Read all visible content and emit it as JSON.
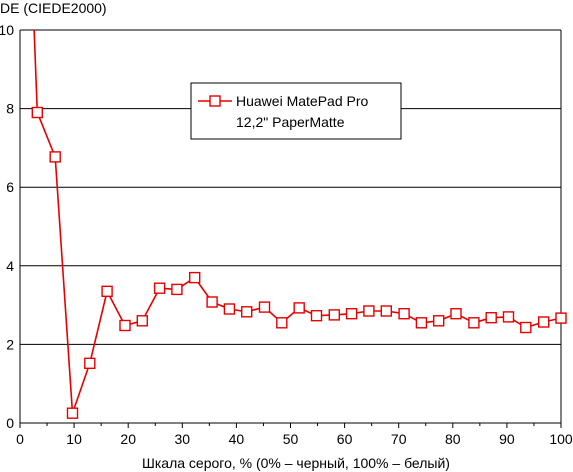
{
  "chart_data": {
    "type": "line",
    "ylabel": "DE (CIEDE2000)",
    "xlabel": "Шкала серого, % (0% – черный, 100% – белый)",
    "xlim": [
      0,
      100
    ],
    "ylim": [
      0,
      10
    ],
    "x_ticks": [
      0,
      10,
      20,
      30,
      40,
      50,
      60,
      70,
      80,
      90,
      100
    ],
    "y_ticks": [
      0,
      2,
      4,
      6,
      8,
      10
    ],
    "grid": "horizontal",
    "legend_position": "top-center",
    "series": [
      {
        "name_lines": [
          "Huawei MatePad Pro",
          "12,2\" PaperMatte"
        ],
        "color": "#e60000",
        "marker": "square-open",
        "x": [
          1.5,
          3.2,
          6.5,
          9.7,
          12.9,
          16.1,
          19.4,
          22.6,
          25.8,
          29.0,
          32.3,
          35.5,
          38.7,
          41.9,
          45.2,
          48.4,
          51.6,
          54.8,
          58.1,
          61.3,
          64.5,
          67.7,
          71.0,
          74.2,
          77.4,
          80.6,
          83.9,
          87.1,
          90.3,
          93.5,
          96.8,
          100.0
        ],
        "y": [
          14.0,
          7.9,
          6.77,
          0.25,
          1.52,
          3.35,
          2.48,
          2.6,
          3.43,
          3.4,
          3.7,
          3.08,
          2.9,
          2.83,
          2.95,
          2.55,
          2.93,
          2.73,
          2.75,
          2.78,
          2.85,
          2.85,
          2.78,
          2.55,
          2.6,
          2.78,
          2.55,
          2.68,
          2.7,
          2.43,
          2.57,
          2.67
        ],
        "marker_mask": [
          false,
          true,
          true,
          true,
          true,
          true,
          true,
          true,
          true,
          true,
          true,
          true,
          true,
          true,
          true,
          true,
          true,
          true,
          true,
          true,
          true,
          true,
          true,
          true,
          true,
          true,
          true,
          true,
          true,
          true,
          true,
          true
        ]
      }
    ]
  }
}
